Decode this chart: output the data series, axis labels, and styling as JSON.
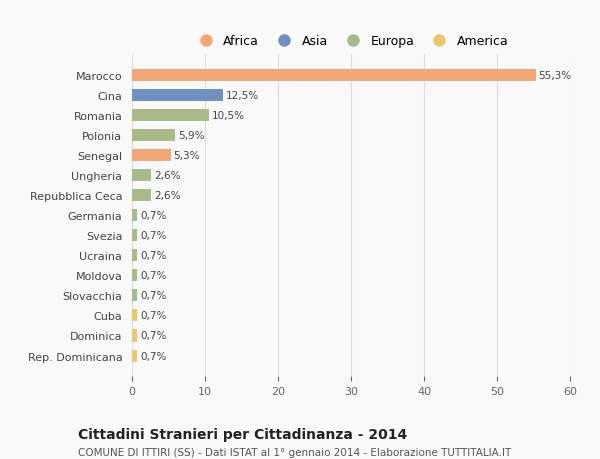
{
  "countries": [
    "Marocco",
    "Cina",
    "Romania",
    "Polonia",
    "Senegal",
    "Ungheria",
    "Repubblica Ceca",
    "Germania",
    "Svezia",
    "Ucraina",
    "Moldova",
    "Slovacchia",
    "Cuba",
    "Dominica",
    "Rep. Dominicana"
  ],
  "values": [
    55.3,
    12.5,
    10.5,
    5.9,
    5.3,
    2.6,
    2.6,
    0.7,
    0.7,
    0.7,
    0.7,
    0.7,
    0.7,
    0.7,
    0.7
  ],
  "labels": [
    "55,3%",
    "12,5%",
    "10,5%",
    "5,9%",
    "5,3%",
    "2,6%",
    "2,6%",
    "0,7%",
    "0,7%",
    "0,7%",
    "0,7%",
    "0,7%",
    "0,7%",
    "0,7%",
    "0,7%"
  ],
  "continents": [
    "Africa",
    "Asia",
    "Europa",
    "Europa",
    "Africa",
    "Europa",
    "Europa",
    "Europa",
    "Europa",
    "Europa",
    "Europa",
    "Europa",
    "America",
    "America",
    "America"
  ],
  "colors": {
    "Africa": "#F0A878",
    "Asia": "#7090C0",
    "Europa": "#A8BA88",
    "America": "#E8C870"
  },
  "legend_order": [
    "Africa",
    "Asia",
    "Europa",
    "America"
  ],
  "title": "Cittadini Stranieri per Cittadinanza - 2014",
  "subtitle": "COMUNE DI ITTIRI (SS) - Dati ISTAT al 1° gennaio 2014 - Elaborazione TUTTITALIA.IT",
  "xlim": [
    0,
    60
  ],
  "xticks": [
    0,
    10,
    20,
    30,
    40,
    50,
    60
  ],
  "bg_color": "#f9f9f9",
  "grid_color": "#dddddd"
}
